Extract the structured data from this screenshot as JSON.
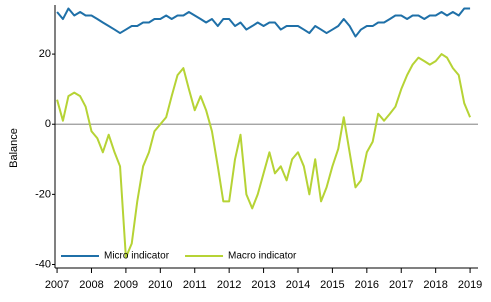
{
  "chart_data": {
    "type": "line",
    "y_label": "Balance",
    "x": [
      2007,
      2007.17,
      2007.33,
      2007.5,
      2007.67,
      2007.83,
      2008,
      2008.17,
      2008.33,
      2008.5,
      2008.67,
      2008.83,
      2009,
      2009.17,
      2009.33,
      2009.5,
      2009.67,
      2009.83,
      2010,
      2010.17,
      2010.33,
      2010.5,
      2010.67,
      2010.83,
      2011,
      2011.17,
      2011.33,
      2011.5,
      2011.67,
      2011.83,
      2012,
      2012.17,
      2012.33,
      2012.5,
      2012.67,
      2012.83,
      2013,
      2013.17,
      2013.33,
      2013.5,
      2013.67,
      2013.83,
      2014,
      2014.17,
      2014.33,
      2014.5,
      2014.67,
      2014.83,
      2015,
      2015.17,
      2015.33,
      2015.5,
      2015.67,
      2015.83,
      2016,
      2016.17,
      2016.33,
      2016.5,
      2016.67,
      2016.83,
      2017,
      2017.17,
      2017.33,
      2017.5,
      2017.67,
      2017.83,
      2018,
      2018.17,
      2018.33,
      2018.5,
      2018.67,
      2018.83,
      2019
    ],
    "series": [
      {
        "name": "Micro indicator",
        "color": "#1f70a8",
        "values": [
          32,
          30,
          33,
          31,
          32,
          31,
          31,
          30,
          29,
          28,
          27,
          26,
          27,
          28,
          28,
          29,
          29,
          30,
          30,
          31,
          30,
          31,
          31,
          32,
          31,
          30,
          29,
          30,
          28,
          30,
          30,
          28,
          29,
          27,
          28,
          29,
          28,
          29,
          29,
          27,
          28,
          28,
          28,
          27,
          26,
          28,
          27,
          26,
          27,
          28,
          30,
          28,
          25,
          27,
          28,
          28,
          29,
          29,
          30,
          31,
          31,
          30,
          31,
          31,
          30,
          31,
          31,
          32,
          31,
          32,
          31,
          33,
          33
        ]
      },
      {
        "name": "Macro indicator",
        "color": "#b6d335",
        "values": [
          7,
          1,
          8,
          9,
          8,
          5,
          -2,
          -4,
          -8,
          -3,
          -8,
          -12,
          -38,
          -34,
          -22,
          -12,
          -8,
          -2,
          0,
          2,
          8,
          14,
          16,
          10,
          4,
          8,
          4,
          -2,
          -12,
          -22,
          -22,
          -10,
          -3,
          -20,
          -24,
          -20,
          -14,
          -8,
          -14,
          -12,
          -16,
          -10,
          -8,
          -12,
          -20,
          -10,
          -22,
          -18,
          -12,
          -7,
          2,
          -8,
          -18,
          -16,
          -8,
          -5,
          3,
          1,
          3,
          5,
          10,
          14,
          17,
          19,
          18,
          17,
          18,
          20,
          19,
          16,
          14,
          6,
          2
        ]
      }
    ],
    "xlim": [
      2006.94,
      2019.23
    ],
    "xticks": [
      2007,
      2008,
      2009,
      2010,
      2011,
      2012,
      2013,
      2014,
      2015,
      2016,
      2017,
      2018,
      2019
    ],
    "ylim": [
      -41,
      34
    ],
    "yticks": [
      20,
      0,
      -20,
      -40
    ],
    "legend": "bottom-left"
  }
}
